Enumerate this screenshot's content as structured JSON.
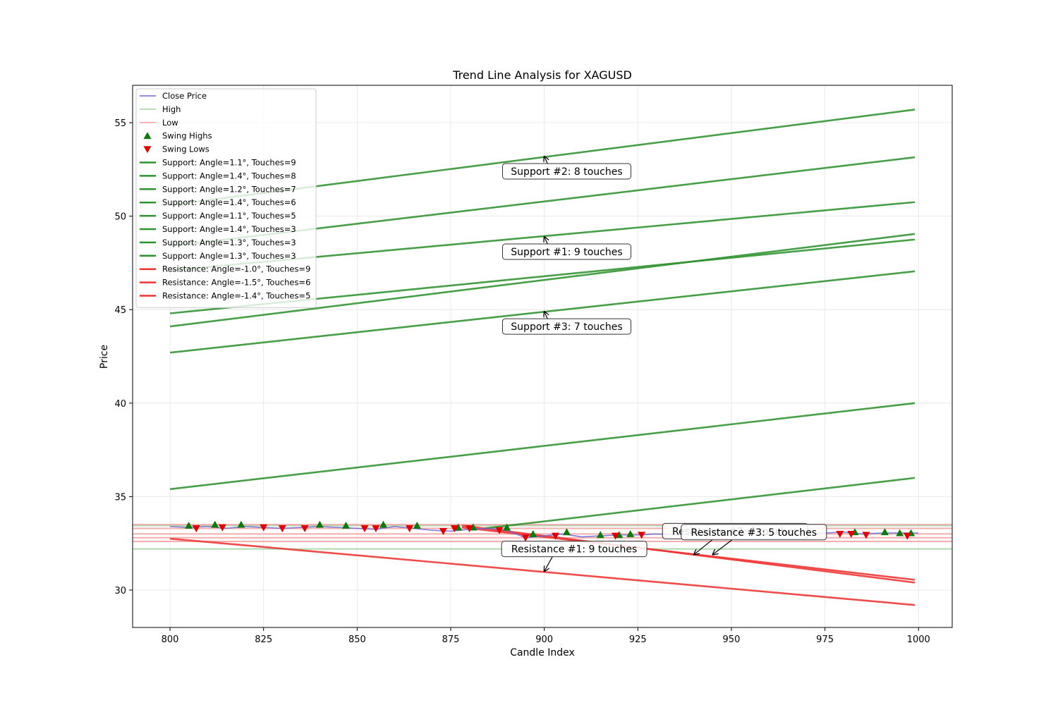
{
  "chart_data": {
    "type": "line",
    "title": "Trend Line Analysis for XAGUSD",
    "xlabel": "Candle Index",
    "ylabel": "Price",
    "xlim": [
      790,
      1009
    ],
    "ylim": [
      28,
      57
    ],
    "xticks": [
      800,
      825,
      850,
      875,
      900,
      925,
      950,
      975,
      1000
    ],
    "yticks": [
      30,
      35,
      40,
      45,
      50,
      55
    ],
    "grid": true,
    "legend_position": "upper-left",
    "colors": {
      "close": "#6a6ad8",
      "high": "#9fd49f",
      "low": "#f2a0a0",
      "swing_high": "#0a7a0a",
      "swing_low": "#e00000",
      "support": "#2e922e",
      "resistance": "#ee3333"
    },
    "series": [
      {
        "name": "Close Price",
        "kind": "price",
        "x": [
          800,
          805,
          810,
          815,
          820,
          825,
          830,
          835,
          840,
          845,
          850,
          855,
          860,
          865,
          870,
          875,
          880,
          885,
          890,
          895,
          900,
          905,
          910,
          915,
          920,
          925,
          930,
          935,
          940,
          945,
          950,
          955,
          960,
          965,
          970,
          975,
          980,
          985,
          990,
          995,
          1000
        ],
        "y": [
          33.4,
          33.35,
          33.4,
          33.3,
          33.4,
          33.35,
          33.3,
          33.35,
          33.4,
          33.35,
          33.3,
          33.25,
          33.4,
          33.3,
          33.2,
          33.15,
          33.25,
          33.3,
          33.2,
          32.8,
          32.9,
          33.0,
          32.85,
          32.9,
          32.95,
          32.95,
          33.0,
          32.95,
          33.0,
          33.05,
          33.0,
          33.05,
          33.0,
          33.05,
          33.0,
          33.05,
          33.1,
          33.0,
          33.05,
          33.05,
          33.05
        ]
      },
      {
        "name": "High",
        "kind": "level",
        "y": [
          33.45,
          32.2
        ]
      },
      {
        "name": "Low",
        "kind": "level",
        "y": [
          33.5,
          33.3,
          33.0,
          32.8,
          32.6
        ]
      },
      {
        "name": "Swing Highs",
        "kind": "marker",
        "x": [
          805,
          812,
          819,
          840,
          847,
          857,
          866,
          877,
          881,
          890,
          897,
          906,
          915,
          920,
          923,
          983,
          991,
          995,
          998
        ],
        "y": [
          33.45,
          33.5,
          33.5,
          33.5,
          33.45,
          33.5,
          33.45,
          33.35,
          33.35,
          33.35,
          33.0,
          33.1,
          32.95,
          32.95,
          33.0,
          33.1,
          33.1,
          33.05,
          33.05
        ]
      },
      {
        "name": "Swing Lows",
        "kind": "marker",
        "x": [
          807,
          814,
          825,
          830,
          836,
          852,
          855,
          864,
          873,
          876,
          880,
          888,
          895,
          903,
          919,
          926,
          979,
          982,
          986,
          997
        ],
        "y": [
          33.3,
          33.35,
          33.35,
          33.3,
          33.3,
          33.3,
          33.3,
          33.3,
          33.15,
          33.3,
          33.3,
          33.2,
          32.8,
          32.9,
          32.9,
          32.95,
          33.0,
          33.0,
          32.95,
          32.9
        ]
      },
      {
        "name": "Support: Angle=1.1°, Touches=9",
        "kind": "support",
        "x": [
          800,
          999
        ],
        "y": [
          47.1,
          50.75
        ]
      },
      {
        "name": "Support: Angle=1.4°, Touches=8",
        "kind": "support",
        "x": [
          800,
          999
        ],
        "y": [
          48.4,
          53.15
        ]
      },
      {
        "name": "Support: Angle=1.2°, Touches=7",
        "kind": "support",
        "x": [
          800,
          999
        ],
        "y": [
          42.7,
          47.05
        ]
      },
      {
        "name": "Support: Angle=1.4°, Touches=6",
        "kind": "support",
        "x": [
          800,
          999
        ],
        "y": [
          44.1,
          49.05
        ]
      },
      {
        "name": "Support: Angle=1.1°, Touches=5",
        "kind": "support",
        "x": [
          800,
          999
        ],
        "y": [
          44.8,
          48.75
        ]
      },
      {
        "name": "Support: Angle=1.4°, Touches=3",
        "kind": "support",
        "x": [
          800,
          999
        ],
        "y": [
          50.6,
          55.7
        ]
      },
      {
        "name": "Support: Angle=1.3°, Touches=3",
        "kind": "support",
        "x": [
          800,
          999
        ],
        "y": [
          35.4,
          40.0
        ]
      },
      {
        "name": "Support: Angle=1.3°, Touches=3",
        "kind": "support",
        "x": [
          884,
          999
        ],
        "y": [
          33.3,
          36.0
        ]
      },
      {
        "name": "Resistance: Angle=-1.0°, Touches=9",
        "kind": "resistance",
        "x": [
          800,
          999
        ],
        "y": [
          32.75,
          29.2
        ]
      },
      {
        "name": "Resistance: Angle=-1.5°, Touches=6",
        "kind": "resistance",
        "x": [
          878,
          999
        ],
        "y": [
          33.45,
          30.4
        ]
      },
      {
        "name": "Resistance: Angle=-1.4°, Touches=5",
        "kind": "resistance",
        "x": [
          878,
          999
        ],
        "y": [
          33.35,
          30.55
        ]
      }
    ],
    "annotations": [
      {
        "text": "Support #2: 8 touches",
        "x": 900,
        "y": 53.2,
        "tx": 906,
        "ty": 52.4
      },
      {
        "text": "Support #1: 9 touches",
        "x": 900,
        "y": 48.9,
        "tx": 906,
        "ty": 48.1
      },
      {
        "text": "Support #3: 7 touches",
        "x": 900,
        "y": 44.9,
        "tx": 906,
        "ty": 44.1
      },
      {
        "text": "Resistance #1: 9 touches",
        "x": 900,
        "y": 31.0,
        "tx": 908,
        "ty": 32.2
      },
      {
        "text": "Resistance #2: 6 touches",
        "x": 940,
        "y": 31.9,
        "tx": 951,
        "ty": 33.15
      },
      {
        "text": "Resistance #3: 5 touches",
        "x": 945,
        "y": 31.9,
        "tx": 956,
        "ty": 33.1
      }
    ]
  }
}
